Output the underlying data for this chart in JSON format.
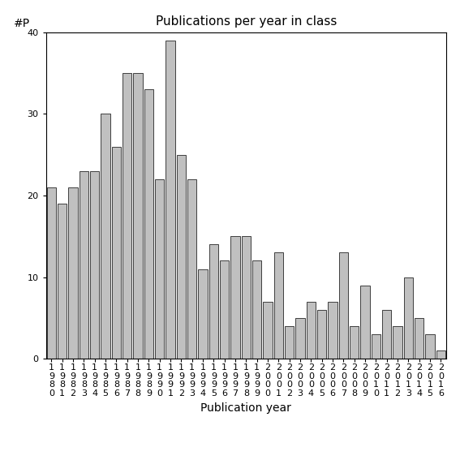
{
  "title": "Publications per year in class",
  "xlabel": "Publication year",
  "ylabel": "#P",
  "years": [
    "1980",
    "1981",
    "1982",
    "1983",
    "1984",
    "1985",
    "1986",
    "1987",
    "1988",
    "1989",
    "1990",
    "1991",
    "1992",
    "1993",
    "1994",
    "1995",
    "1996",
    "1997",
    "1998",
    "1999",
    "2000",
    "2001",
    "2002",
    "2003",
    "2004",
    "2005",
    "2006",
    "2007",
    "2008",
    "2009",
    "2010",
    "2011",
    "2012",
    "2013",
    "2014",
    "2015",
    "2016"
  ],
  "values": [
    21,
    19,
    21,
    23,
    23,
    30,
    26,
    35,
    35,
    33,
    22,
    39,
    25,
    22,
    11,
    14,
    12,
    15,
    15,
    12,
    7,
    13,
    4,
    5,
    7,
    6,
    7,
    13,
    4,
    9,
    3,
    6,
    4,
    10,
    5,
    3,
    1
  ],
  "bar_color": "#c0c0c0",
  "bar_edge_color": "#000000",
  "ylim": [
    0,
    40
  ],
  "yticks": [
    0,
    10,
    20,
    30,
    40
  ],
  "background_color": "#ffffff",
  "title_fontsize": 11,
  "axis_label_fontsize": 10,
  "tick_fontsize": 8
}
